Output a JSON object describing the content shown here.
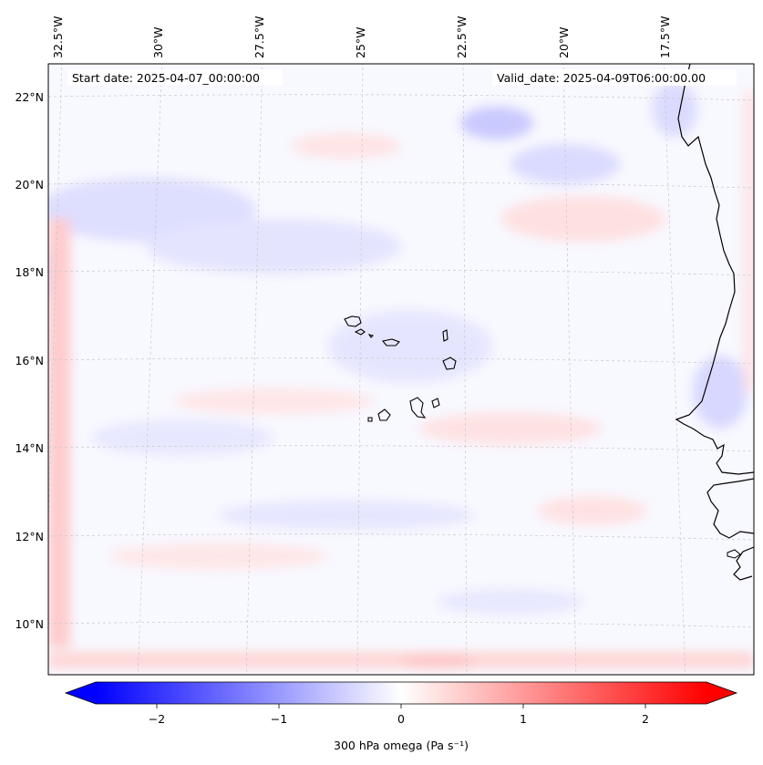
{
  "header": {
    "start_date": "Start date: 2025-04-07_00:00:00",
    "valid_date": "Valid_date: 2025-04-09T06:00:00.00"
  },
  "map": {
    "extent": {
      "lon_min": -32.6,
      "lon_max": -15.5,
      "lat_min": 8.8,
      "lat_max": 22.7
    },
    "lon_labels": [
      "32.5°W",
      "30°W",
      "27.5°W",
      "25°W",
      "22.5°W",
      "20°W",
      "17.5°W"
    ],
    "lat_labels": [
      "22°N",
      "20°N",
      "18°N",
      "16°N",
      "14°N",
      "12°N",
      "10°N"
    ],
    "field_colors": {
      "negative": "#8c8cff",
      "positive": "#ff8c8c",
      "neutral": "#f8f8ff"
    }
  },
  "colorbar": {
    "label": "300 hPa omega (Pa s⁻¹)",
    "vmin": -2.7,
    "vmax": 2.7,
    "ticks": [
      "−2",
      "−1",
      "0",
      "1",
      "2"
    ],
    "colors": {
      "min": "#0000ff",
      "mid": "#ffffff",
      "max": "#ff0000"
    }
  }
}
